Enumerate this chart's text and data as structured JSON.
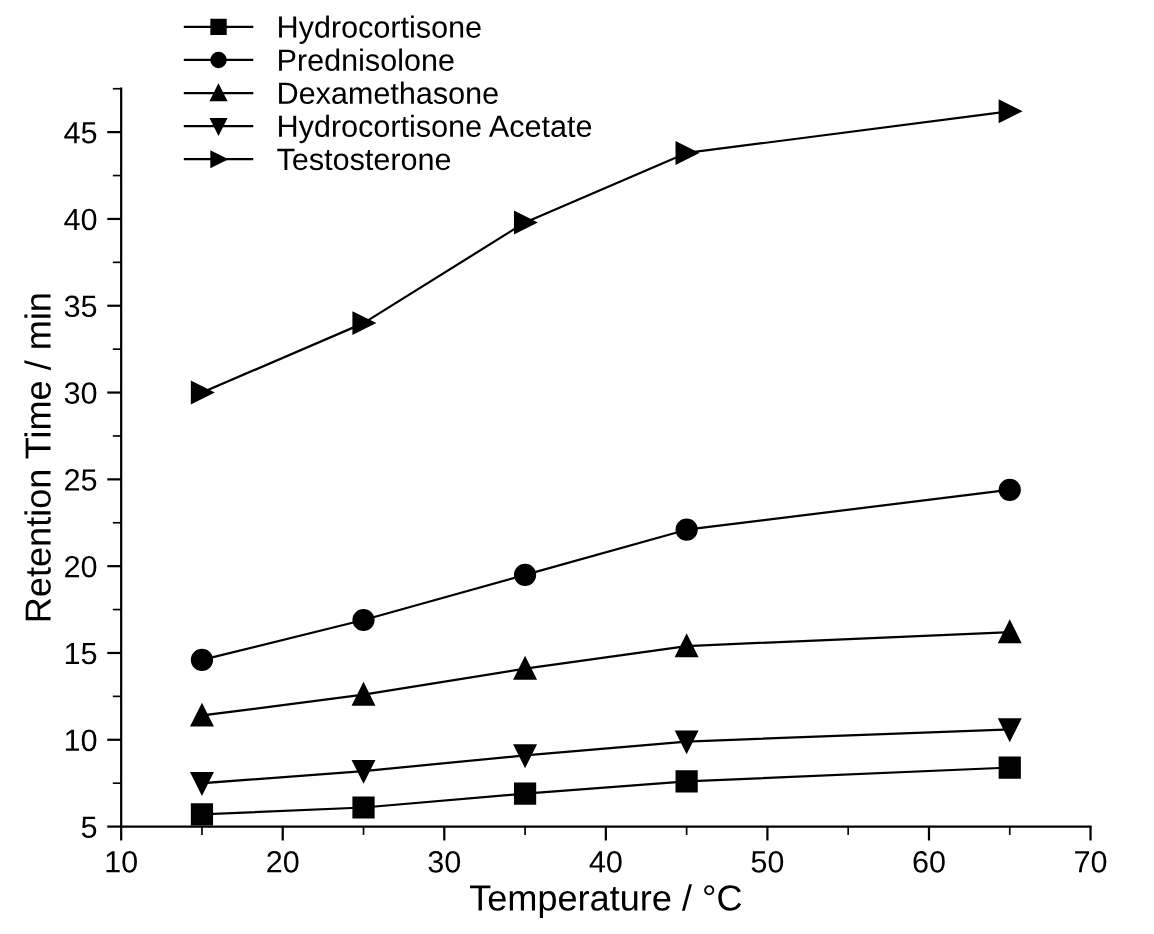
{
  "chart_data": {
    "type": "line",
    "xlabel": "Temperature / °C",
    "ylabel": "Retention Time / min",
    "x": [
      15,
      25,
      35,
      45,
      65
    ],
    "series": [
      {
        "name": "Hydrocortisone",
        "color": "#000000",
        "marker": "square",
        "values": [
          5.7,
          6.1,
          6.9,
          7.6,
          8.4
        ]
      },
      {
        "name": "Prednisolone",
        "color": "#000000",
        "marker": "circle",
        "values": [
          14.6,
          16.9,
          19.5,
          22.1,
          24.4
        ]
      },
      {
        "name": "Dexamethasone",
        "color": "#000000",
        "marker": "triangle",
        "values": [
          11.4,
          12.6,
          14.1,
          15.4,
          16.2
        ]
      },
      {
        "name": "Hydrocortisone Acetate",
        "color": "#000000",
        "marker": "triangle_down",
        "values": [
          7.5,
          8.2,
          9.1,
          9.9,
          10.6
        ]
      },
      {
        "name": "Testosterone",
        "color": "#000000",
        "marker": "triangle_right",
        "values": [
          30.0,
          34.0,
          39.8,
          43.8,
          46.2
        ]
      }
    ],
    "xlim": [
      10,
      70
    ],
    "xticks": [
      10,
      20,
      30,
      40,
      50,
      60,
      70
    ],
    "ylim": [
      5,
      47.5
    ],
    "yticks": [
      5,
      10,
      15,
      20,
      25,
      30,
      35,
      40,
      45
    ],
    "grid": false,
    "legend": "top left",
    "line_style": "solid"
  }
}
